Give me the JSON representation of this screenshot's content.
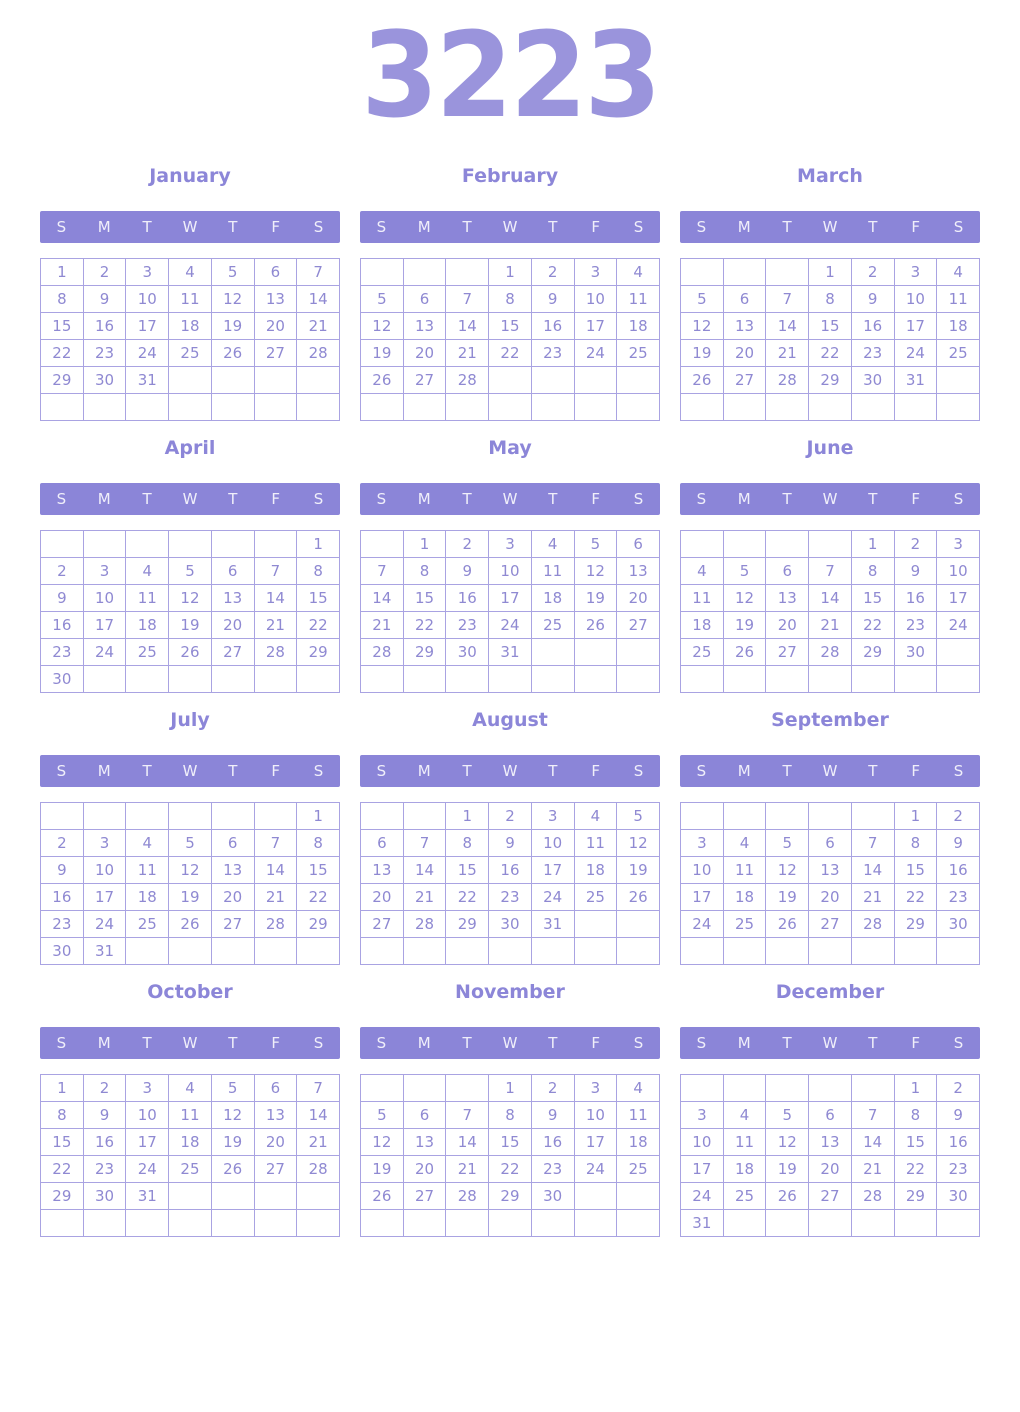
{
  "title": "3223",
  "weekdays": [
    "S",
    "M",
    "T",
    "W",
    "T",
    "F",
    "S"
  ],
  "colors": {
    "year_title": "#9a94dc",
    "month_title": "#8c86d8",
    "header_bg": "#8b85d8",
    "header_text": "#f0effa",
    "grid_border": "#a9a3e2",
    "day_text": "#8f89d2"
  },
  "months": [
    {
      "name": "January",
      "weeks": [
        [
          "1",
          "2",
          "3",
          "4",
          "5",
          "6",
          "7"
        ],
        [
          "8",
          "9",
          "10",
          "11",
          "12",
          "13",
          "14"
        ],
        [
          "15",
          "16",
          "17",
          "18",
          "19",
          "20",
          "21"
        ],
        [
          "22",
          "23",
          "24",
          "25",
          "26",
          "27",
          "28"
        ],
        [
          "29",
          "30",
          "31",
          "",
          "",
          "",
          ""
        ],
        [
          "",
          "",
          "",
          "",
          "",
          "",
          ""
        ]
      ]
    },
    {
      "name": "February",
      "weeks": [
        [
          "",
          "",
          "",
          "1",
          "2",
          "3",
          "4"
        ],
        [
          "5",
          "6",
          "7",
          "8",
          "9",
          "10",
          "11"
        ],
        [
          "12",
          "13",
          "14",
          "15",
          "16",
          "17",
          "18"
        ],
        [
          "19",
          "20",
          "21",
          "22",
          "23",
          "24",
          "25"
        ],
        [
          "26",
          "27",
          "28",
          "",
          "",
          "",
          ""
        ],
        [
          "",
          "",
          "",
          "",
          "",
          "",
          ""
        ]
      ]
    },
    {
      "name": "March",
      "weeks": [
        [
          "",
          "",
          "",
          "1",
          "2",
          "3",
          "4"
        ],
        [
          "5",
          "6",
          "7",
          "8",
          "9",
          "10",
          "11"
        ],
        [
          "12",
          "13",
          "14",
          "15",
          "16",
          "17",
          "18"
        ],
        [
          "19",
          "20",
          "21",
          "22",
          "23",
          "24",
          "25"
        ],
        [
          "26",
          "27",
          "28",
          "29",
          "30",
          "31",
          ""
        ],
        [
          "",
          "",
          "",
          "",
          "",
          "",
          ""
        ]
      ]
    },
    {
      "name": "April",
      "weeks": [
        [
          "",
          "",
          "",
          "",
          "",
          "",
          "1"
        ],
        [
          "2",
          "3",
          "4",
          "5",
          "6",
          "7",
          "8"
        ],
        [
          "9",
          "10",
          "11",
          "12",
          "13",
          "14",
          "15"
        ],
        [
          "16",
          "17",
          "18",
          "19",
          "20",
          "21",
          "22"
        ],
        [
          "23",
          "24",
          "25",
          "26",
          "27",
          "28",
          "29"
        ],
        [
          "30",
          "",
          "",
          "",
          "",
          "",
          ""
        ]
      ]
    },
    {
      "name": "May",
      "weeks": [
        [
          "",
          "1",
          "2",
          "3",
          "4",
          "5",
          "6"
        ],
        [
          "7",
          "8",
          "9",
          "10",
          "11",
          "12",
          "13"
        ],
        [
          "14",
          "15",
          "16",
          "17",
          "18",
          "19",
          "20"
        ],
        [
          "21",
          "22",
          "23",
          "24",
          "25",
          "26",
          "27"
        ],
        [
          "28",
          "29",
          "30",
          "31",
          "",
          "",
          ""
        ],
        [
          "",
          "",
          "",
          "",
          "",
          "",
          ""
        ]
      ]
    },
    {
      "name": "June",
      "weeks": [
        [
          "",
          "",
          "",
          "",
          "1",
          "2",
          "3"
        ],
        [
          "4",
          "5",
          "6",
          "7",
          "8",
          "9",
          "10"
        ],
        [
          "11",
          "12",
          "13",
          "14",
          "15",
          "16",
          "17"
        ],
        [
          "18",
          "19",
          "20",
          "21",
          "22",
          "23",
          "24"
        ],
        [
          "25",
          "26",
          "27",
          "28",
          "29",
          "30",
          ""
        ],
        [
          "",
          "",
          "",
          "",
          "",
          "",
          ""
        ]
      ]
    },
    {
      "name": "July",
      "weeks": [
        [
          "",
          "",
          "",
          "",
          "",
          "",
          "1"
        ],
        [
          "2",
          "3",
          "4",
          "5",
          "6",
          "7",
          "8"
        ],
        [
          "9",
          "10",
          "11",
          "12",
          "13",
          "14",
          "15"
        ],
        [
          "16",
          "17",
          "18",
          "19",
          "20",
          "21",
          "22"
        ],
        [
          "23",
          "24",
          "25",
          "26",
          "27",
          "28",
          "29"
        ],
        [
          "30",
          "31",
          "",
          "",
          "",
          "",
          ""
        ]
      ]
    },
    {
      "name": "August",
      "weeks": [
        [
          "",
          "",
          "1",
          "2",
          "3",
          "4",
          "5"
        ],
        [
          "6",
          "7",
          "8",
          "9",
          "10",
          "11",
          "12"
        ],
        [
          "13",
          "14",
          "15",
          "16",
          "17",
          "18",
          "19"
        ],
        [
          "20",
          "21",
          "22",
          "23",
          "24",
          "25",
          "26"
        ],
        [
          "27",
          "28",
          "29",
          "30",
          "31",
          "",
          ""
        ],
        [
          "",
          "",
          "",
          "",
          "",
          "",
          ""
        ]
      ]
    },
    {
      "name": "September",
      "weeks": [
        [
          "",
          "",
          "",
          "",
          "",
          "1",
          "2"
        ],
        [
          "3",
          "4",
          "5",
          "6",
          "7",
          "8",
          "9"
        ],
        [
          "10",
          "11",
          "12",
          "13",
          "14",
          "15",
          "16"
        ],
        [
          "17",
          "18",
          "19",
          "20",
          "21",
          "22",
          "23"
        ],
        [
          "24",
          "25",
          "26",
          "27",
          "28",
          "29",
          "30"
        ],
        [
          "",
          "",
          "",
          "",
          "",
          "",
          ""
        ]
      ]
    },
    {
      "name": "October",
      "weeks": [
        [
          "1",
          "2",
          "3",
          "4",
          "5",
          "6",
          "7"
        ],
        [
          "8",
          "9",
          "10",
          "11",
          "12",
          "13",
          "14"
        ],
        [
          "15",
          "16",
          "17",
          "18",
          "19",
          "20",
          "21"
        ],
        [
          "22",
          "23",
          "24",
          "25",
          "26",
          "27",
          "28"
        ],
        [
          "29",
          "30",
          "31",
          "",
          "",
          "",
          ""
        ],
        [
          "",
          "",
          "",
          "",
          "",
          "",
          ""
        ]
      ]
    },
    {
      "name": "November",
      "weeks": [
        [
          "",
          "",
          "",
          "1",
          "2",
          "3",
          "4"
        ],
        [
          "5",
          "6",
          "7",
          "8",
          "9",
          "10",
          "11"
        ],
        [
          "12",
          "13",
          "14",
          "15",
          "16",
          "17",
          "18"
        ],
        [
          "19",
          "20",
          "21",
          "22",
          "23",
          "24",
          "25"
        ],
        [
          "26",
          "27",
          "28",
          "29",
          "30",
          "",
          ""
        ],
        [
          "",
          "",
          "",
          "",
          "",
          "",
          ""
        ]
      ]
    },
    {
      "name": "December",
      "weeks": [
        [
          "",
          "",
          "",
          "",
          "",
          "1",
          "2"
        ],
        [
          "3",
          "4",
          "5",
          "6",
          "7",
          "8",
          "9"
        ],
        [
          "10",
          "11",
          "12",
          "13",
          "14",
          "15",
          "16"
        ],
        [
          "17",
          "18",
          "19",
          "20",
          "21",
          "22",
          "23"
        ],
        [
          "24",
          "25",
          "26",
          "27",
          "28",
          "29",
          "30"
        ],
        [
          "31",
          "",
          "",
          "",
          "",
          "",
          ""
        ]
      ]
    }
  ]
}
